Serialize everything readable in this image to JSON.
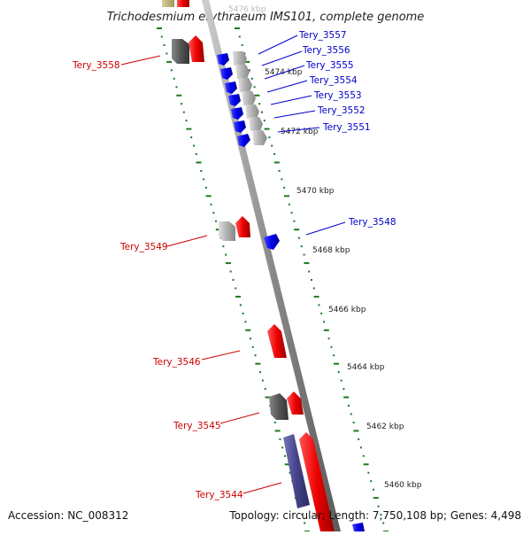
{
  "title": "Trichodesmium erythraeum IMS101, complete genome",
  "footer": {
    "accession": "Accession: NC_008312",
    "summary": "Topology: circular; Length: 7,750,108 bp; Genes: 4,498"
  },
  "top_partial_label": "5476 kbp",
  "kbp_ticks": [
    "5474 kbp",
    "5472 kbp",
    "5470 kbp",
    "5468 kbp",
    "5466 kbp",
    "5464 kbp",
    "5462 kbp",
    "5460 kbp"
  ],
  "reverse_strand_labels": [
    "Tery_3558",
    "Tery_3549",
    "Tery_3546",
    "Tery_3545",
    "Tery_3544"
  ],
  "forward_strand_labels": [
    "Tery_3557",
    "Tery_3556",
    "Tery_3555",
    "Tery_3554",
    "Tery_3553",
    "Tery_3552",
    "Tery_3551",
    "Tery_3548"
  ],
  "colors": {
    "backbone": "#8a8a8a",
    "tick": "#1a7a1a",
    "gene_red": "#ee0000",
    "gene_blue": "#0000ee",
    "gene_grey": "#a8a8a8",
    "gene_dark": "#555555",
    "gene_purple": "#44448a",
    "gene_olive": "#b8b070",
    "label_red": "#cc0000",
    "label_blue": "#0000cc"
  }
}
